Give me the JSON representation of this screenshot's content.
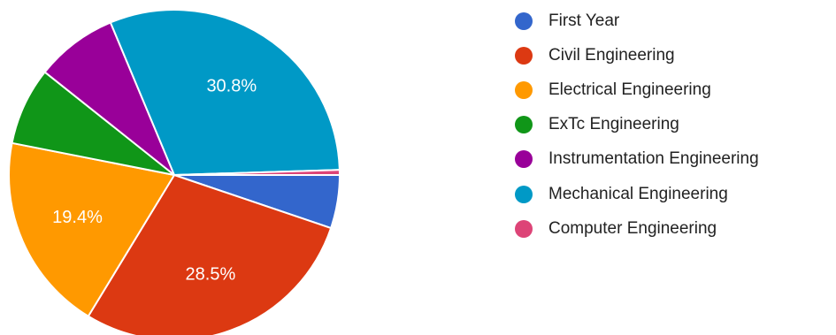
{
  "chart_data": {
    "type": "pie",
    "title": "",
    "legend_position": "right",
    "categories": [
      "First Year",
      "Civil Engineering",
      "Electrical Engineering",
      "ExTc Engineering",
      "Instrumentation Engineering",
      "Mechanical Engineering",
      "Computer Engineering"
    ],
    "values": [
      5.2,
      28.5,
      19.4,
      7.6,
      8.0,
      30.8,
      0.5
    ],
    "data_labels": [
      "",
      "28.5%",
      "19.4%",
      "",
      "",
      "30.8%",
      ""
    ],
    "colors": [
      "#3366cc",
      "#dc3912",
      "#ff9900",
      "#109618",
      "#990099",
      "#0099c6",
      "#dd4477"
    ]
  }
}
